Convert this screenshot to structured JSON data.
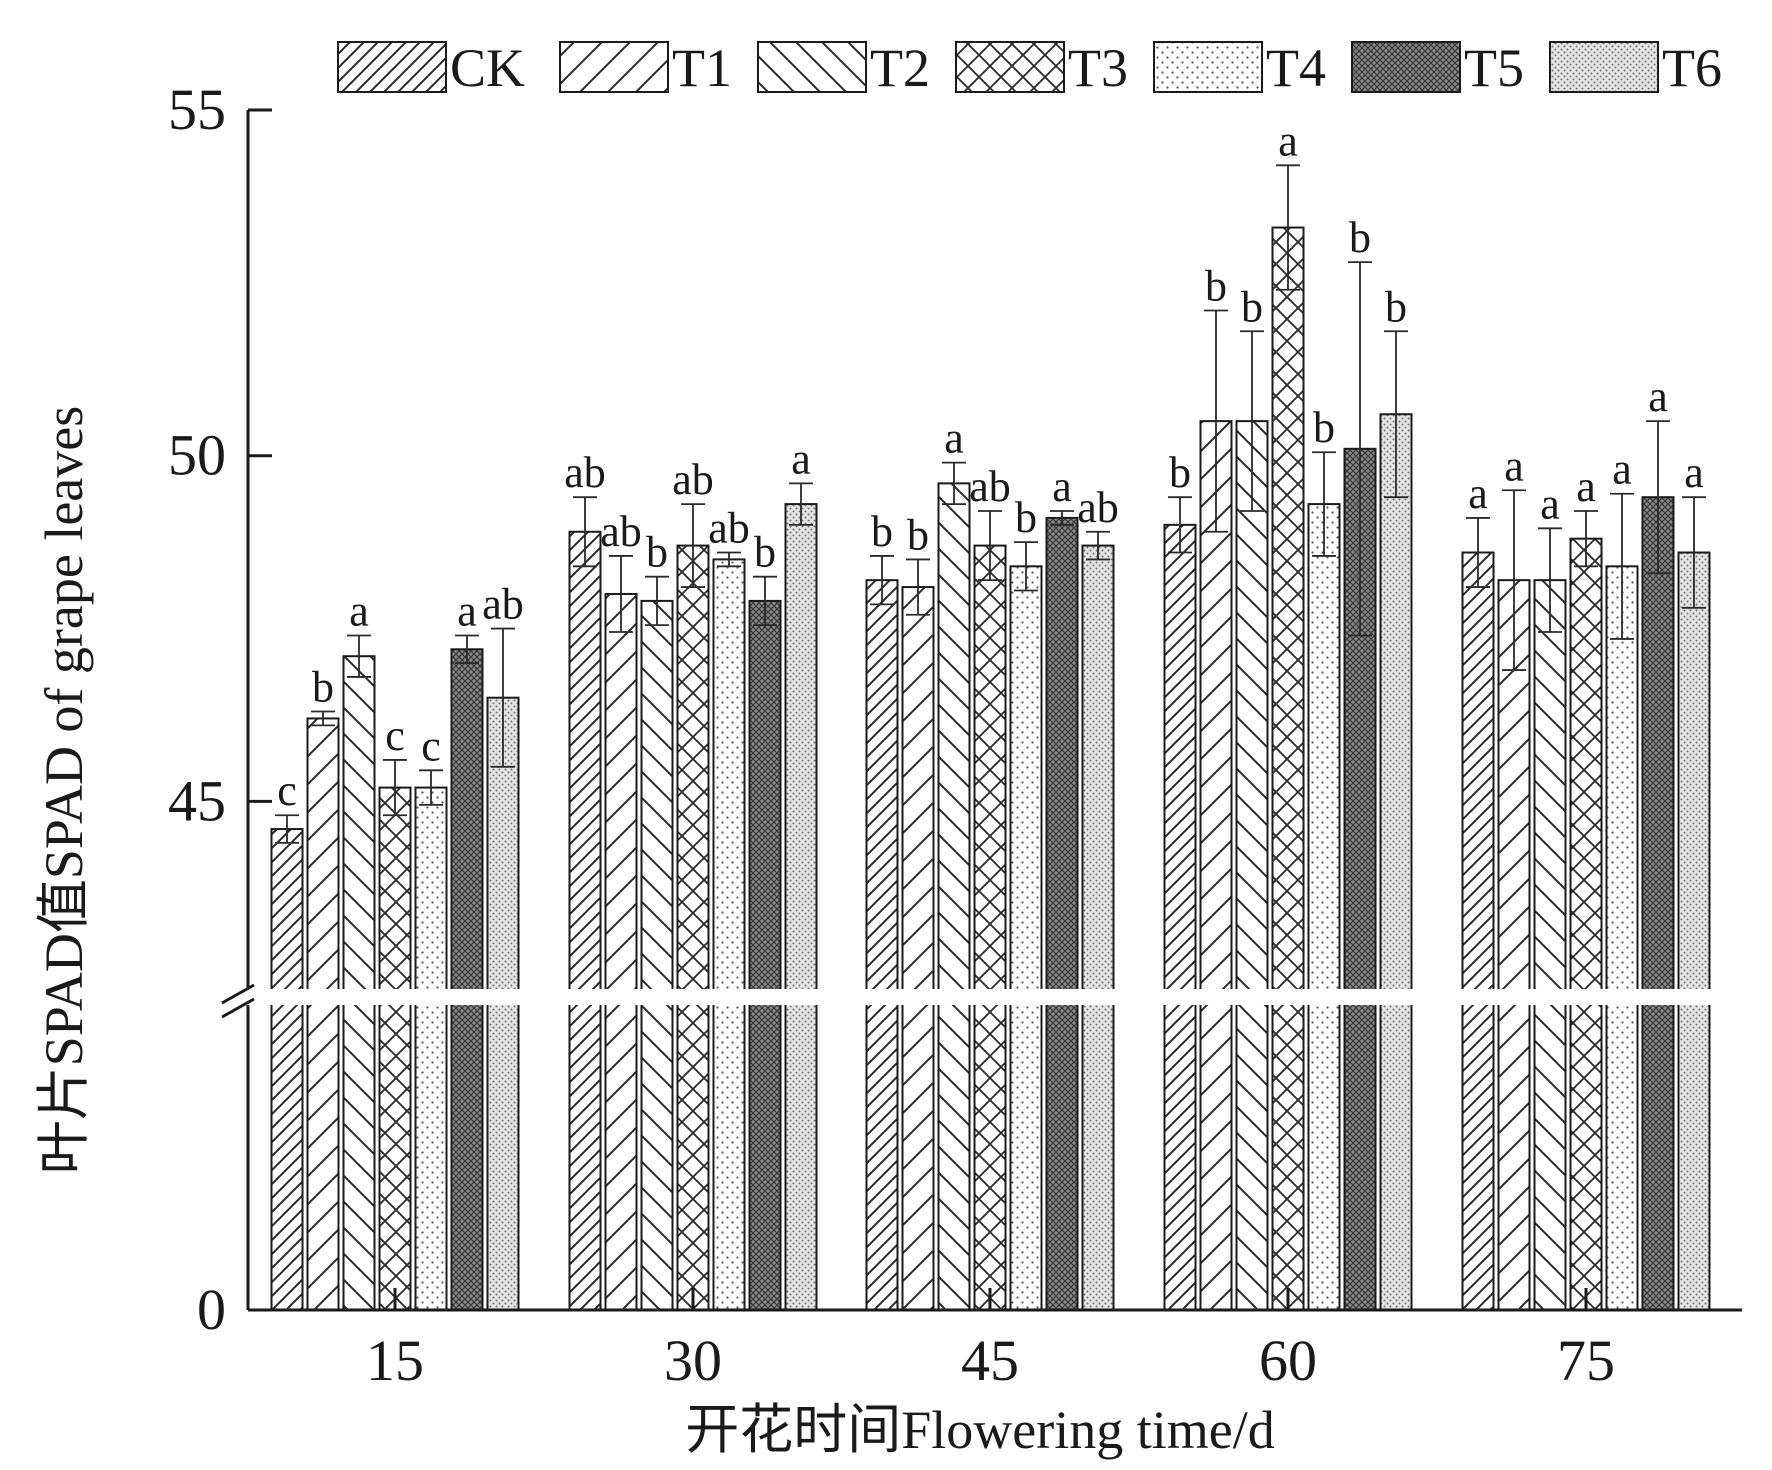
{
  "chart_data": {
    "type": "bar",
    "xlabel": "开花时间Flowering time/d",
    "ylabel": "叶片SPAD值SPAD of grape leaves",
    "categories": [
      "15",
      "30",
      "45",
      "60",
      "75"
    ],
    "y_ticks": [
      "0",
      "45",
      "50",
      "55"
    ],
    "ylim": [
      0,
      55
    ],
    "axis_break": [
      0,
      42.2
    ],
    "legend_position": "top",
    "series": [
      {
        "name": "CK",
        "pattern": "diag-dense",
        "values": [
          44.6,
          48.9,
          48.2,
          49.0,
          48.6
        ],
        "errors": [
          0.2,
          0.5,
          0.35,
          0.4,
          0.5
        ],
        "letters": [
          "c",
          "ab",
          "b",
          "b",
          "a"
        ]
      },
      {
        "name": "T1",
        "pattern": "diag-wide",
        "values": [
          46.2,
          48.0,
          48.1,
          50.5,
          48.2
        ],
        "errors": [
          0.1,
          0.55,
          0.4,
          1.6,
          1.3
        ],
        "letters": [
          "b",
          "ab",
          "b",
          "b",
          "a"
        ]
      },
      {
        "name": "T2",
        "pattern": "back-diag",
        "values": [
          47.1,
          47.9,
          49.6,
          50.5,
          48.2
        ],
        "errors": [
          0.3,
          0.35,
          0.3,
          1.3,
          0.75
        ],
        "letters": [
          "a",
          "b",
          "a",
          "b",
          "a"
        ]
      },
      {
        "name": "T3",
        "pattern": "cross",
        "values": [
          45.2,
          48.7,
          48.7,
          53.3,
          48.8
        ],
        "errors": [
          0.4,
          0.6,
          0.5,
          0.9,
          0.4
        ],
        "letters": [
          "c",
          "ab",
          "ab",
          "a",
          "a"
        ]
      },
      {
        "name": "T4",
        "pattern": "dots-sparse",
        "values": [
          45.2,
          48.5,
          48.4,
          49.3,
          48.4
        ],
        "errors": [
          0.25,
          0.1,
          0.35,
          0.75,
          1.05
        ],
        "letters": [
          "c",
          "ab",
          "b",
          "b",
          "a"
        ]
      },
      {
        "name": "T5",
        "pattern": "dark-cross",
        "values": [
          47.2,
          47.9,
          49.1,
          50.1,
          49.4
        ],
        "errors": [
          0.2,
          0.35,
          0.1,
          2.7,
          1.1
        ],
        "letters": [
          "a",
          "b",
          "a",
          "b",
          "a"
        ]
      },
      {
        "name": "T6",
        "pattern": "dots-dense",
        "values": [
          46.5,
          49.3,
          48.7,
          50.6,
          48.6
        ],
        "errors": [
          1.0,
          0.3,
          0.2,
          1.2,
          0.8
        ],
        "letters": [
          "ab",
          "a",
          "ab",
          "b",
          "a"
        ]
      }
    ]
  }
}
